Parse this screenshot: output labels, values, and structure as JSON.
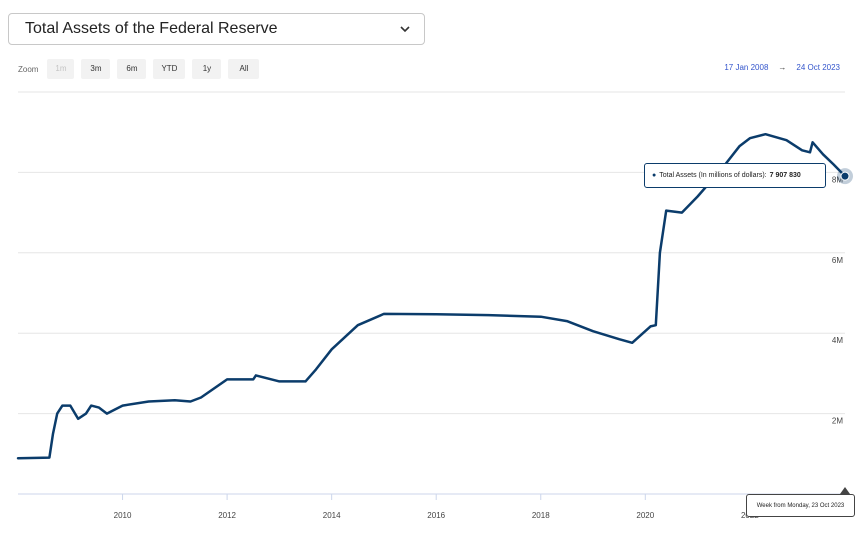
{
  "dropdown": {
    "selected": "Total Assets of the Federal Reserve"
  },
  "zoom": {
    "label": "Zoom",
    "buttons": [
      {
        "label": "1m",
        "disabled": true
      },
      {
        "label": "3m",
        "disabled": false
      },
      {
        "label": "6m",
        "disabled": false
      },
      {
        "label": "YTD",
        "disabled": false
      },
      {
        "label": "1y",
        "disabled": false
      },
      {
        "label": "All",
        "disabled": false
      }
    ]
  },
  "range": {
    "from": "17 Jan 2008",
    "arrow": "→",
    "to": "24 Oct 2023"
  },
  "tooltip": {
    "series_label": "Total Assets (In millions of dollars):",
    "value_text": "7 907 830"
  },
  "crosshair_label": "Week from Monday, 23 Oct 2023",
  "colors": {
    "line": "#0b3c6b",
    "grid": "#e6e6e6",
    "range_text": "#3355cc"
  },
  "chart_data": {
    "type": "line",
    "title": "",
    "xlabel": "",
    "ylabel": "",
    "xlim": [
      2008.0,
      2023.82
    ],
    "ylim": [
      0,
      10000000
    ],
    "grid": true,
    "y_ticks": [
      {
        "value": 2000000,
        "label": "2M"
      },
      {
        "value": 4000000,
        "label": "4M"
      },
      {
        "value": 6000000,
        "label": "6M"
      },
      {
        "value": 8000000,
        "label": "8M"
      }
    ],
    "x_ticks": [
      {
        "value": 2010,
        "label": "2010"
      },
      {
        "value": 2012,
        "label": "2012"
      },
      {
        "value": 2014,
        "label": "2014"
      },
      {
        "value": 2016,
        "label": "2016"
      },
      {
        "value": 2018,
        "label": "2018"
      },
      {
        "value": 2020,
        "label": "2020"
      },
      {
        "value": 2022,
        "label": "2022"
      }
    ],
    "series": [
      {
        "name": "Total Assets (In millions of dollars)",
        "points": [
          [
            2008.0,
            890000
          ],
          [
            2008.6,
            905000
          ],
          [
            2008.67,
            1500000
          ],
          [
            2008.75,
            2000000
          ],
          [
            2008.85,
            2200000
          ],
          [
            2009.0,
            2200000
          ],
          [
            2009.15,
            1870000
          ],
          [
            2009.3,
            2000000
          ],
          [
            2009.4,
            2200000
          ],
          [
            2009.55,
            2150000
          ],
          [
            2009.7,
            2000000
          ],
          [
            2009.85,
            2100000
          ],
          [
            2010.0,
            2200000
          ],
          [
            2010.5,
            2300000
          ],
          [
            2011.0,
            2330000
          ],
          [
            2011.3,
            2300000
          ],
          [
            2011.5,
            2400000
          ],
          [
            2012.0,
            2850000
          ],
          [
            2012.5,
            2850000
          ],
          [
            2012.55,
            2950000
          ],
          [
            2013.0,
            2800000
          ],
          [
            2013.5,
            2800000
          ],
          [
            2013.7,
            3100000
          ],
          [
            2014.0,
            3600000
          ],
          [
            2014.5,
            4200000
          ],
          [
            2015.0,
            4480000
          ],
          [
            2016.0,
            4470000
          ],
          [
            2017.0,
            4450000
          ],
          [
            2018.0,
            4410000
          ],
          [
            2018.5,
            4300000
          ],
          [
            2019.0,
            4050000
          ],
          [
            2019.5,
            3850000
          ],
          [
            2019.75,
            3760000
          ],
          [
            2020.1,
            4170000
          ],
          [
            2020.2,
            4200000
          ],
          [
            2020.28,
            6000000
          ],
          [
            2020.4,
            7050000
          ],
          [
            2020.7,
            7000000
          ],
          [
            2021.0,
            7400000
          ],
          [
            2021.5,
            8150000
          ],
          [
            2021.8,
            8650000
          ],
          [
            2022.0,
            8850000
          ],
          [
            2022.3,
            8950000
          ],
          [
            2022.7,
            8800000
          ],
          [
            2023.0,
            8550000
          ],
          [
            2023.15,
            8500000
          ],
          [
            2023.2,
            8750000
          ],
          [
            2023.4,
            8450000
          ],
          [
            2023.6,
            8200000
          ],
          [
            2023.82,
            7907830
          ]
        ]
      }
    ]
  }
}
